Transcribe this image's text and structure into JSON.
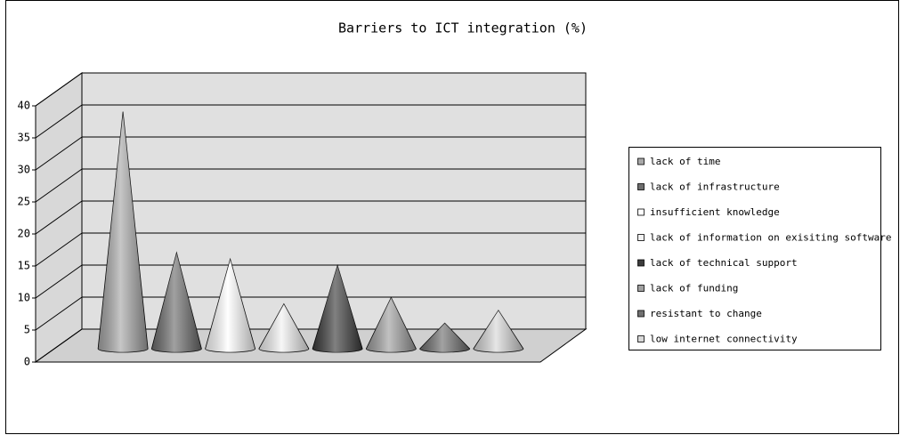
{
  "chart_data": {
    "type": "cone",
    "title": "Barriers to ICT integration (%)",
    "categories": [
      "lack of time",
      "lack of infrastructure",
      "insufficient knowledge",
      "lack of information on exisiting software",
      "lack of technical support",
      "lack of funding",
      "resistant to change",
      "low internet connectivity"
    ],
    "values": [
      37,
      15,
      14,
      7,
      13,
      8,
      4,
      6
    ],
    "colors": [
      "#a8a8a8",
      "#6e6e6e",
      "#ffffff",
      "#f2f2f2",
      "#3c3c3c",
      "#a0a0a0",
      "#707070",
      "#d8d8d8"
    ],
    "ylim": [
      0,
      40
    ],
    "yticks": [
      0,
      5,
      10,
      15,
      20,
      25,
      30,
      35,
      40
    ],
    "grid": true,
    "legend": "right"
  }
}
